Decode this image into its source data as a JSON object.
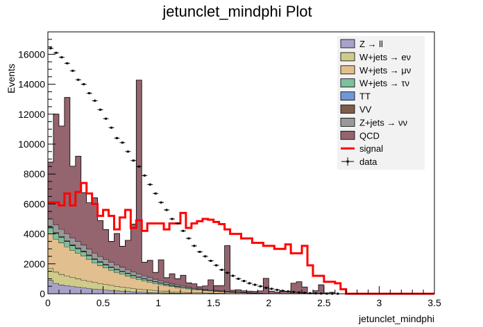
{
  "chart_data": {
    "type": "bar",
    "title": "jetunclet_mindphi Plot",
    "xlabel": "jetunclet_mindphi",
    "ylabel": "Events",
    "xlim": [
      0,
      3.5
    ],
    "ylim": [
      0,
      17500
    ],
    "x_ticks": [
      "0",
      "0.5",
      "1",
      "1.5",
      "2",
      "2.5",
      "3",
      "3.5"
    ],
    "y_ticks": [
      "0",
      "2000",
      "4000",
      "6000",
      "8000",
      "10000",
      "12000",
      "14000",
      "16000"
    ],
    "bin_width": 0.05,
    "stacked": true,
    "stack_series": [
      {
        "name": "Z → ll",
        "color": "#a7a3c8",
        "values": [
          900,
          700,
          600,
          550,
          500,
          450,
          400,
          360,
          320,
          290,
          260,
          230,
          200,
          180,
          160,
          140,
          120,
          105,
          90,
          80,
          70,
          60,
          50,
          40,
          35,
          30,
          25,
          20,
          18,
          15,
          12,
          10,
          8,
          6,
          5,
          4,
          3,
          3,
          2,
          2,
          1,
          1,
          1,
          1,
          1,
          0,
          0,
          0,
          0,
          0,
          0,
          0,
          0,
          0,
          0,
          0,
          0,
          0,
          0,
          0,
          0,
          0,
          0,
          0,
          0,
          0,
          0,
          0,
          0,
          0
        ]
      },
      {
        "name": "W+jets → eν",
        "color": "#cfcb8a",
        "values": [
          800,
          750,
          700,
          650,
          600,
          560,
          520,
          480,
          440,
          400,
          370,
          340,
          310,
          280,
          250,
          220,
          200,
          180,
          160,
          140,
          120,
          100,
          90,
          80,
          70,
          60,
          50,
          45,
          40,
          35,
          30,
          25,
          20,
          18,
          15,
          12,
          10,
          8,
          6,
          5,
          4,
          3,
          2,
          2,
          1,
          1,
          1,
          0,
          0,
          0,
          0,
          0,
          0,
          0,
          0,
          0,
          0,
          0,
          0,
          0,
          0,
          0,
          0,
          0,
          0,
          0,
          0,
          0,
          0,
          0
        ]
      },
      {
        "name": "W+jets → μν",
        "color": "#e2bf8e",
        "values": [
          2300,
          2200,
          2100,
          1950,
          1800,
          1700,
          1600,
          1450,
          1300,
          1200,
          1100,
          1000,
          920,
          850,
          780,
          700,
          640,
          580,
          520,
          470,
          420,
          380,
          340,
          300,
          270,
          240,
          210,
          185,
          160,
          140,
          120,
          100,
          85,
          70,
          60,
          50,
          40,
          30,
          22,
          16,
          12,
          8,
          6,
          4,
          3,
          2,
          1,
          1,
          0,
          0,
          0,
          0,
          0,
          0,
          0,
          0,
          0,
          0,
          0,
          0,
          0,
          0,
          0,
          0,
          0,
          0,
          0,
          0,
          0,
          0
        ]
      },
      {
        "name": "W+jets → τν",
        "color": "#7ebf9d",
        "values": [
          400,
          380,
          360,
          340,
          320,
          300,
          280,
          260,
          240,
          220,
          200,
          190,
          180,
          170,
          160,
          150,
          140,
          130,
          120,
          110,
          100,
          90,
          80,
          70,
          60,
          55,
          50,
          45,
          40,
          35,
          30,
          25,
          20,
          16,
          12,
          10,
          8,
          6,
          4,
          3,
          2,
          2,
          1,
          1,
          1,
          0,
          0,
          0,
          0,
          0,
          0,
          0,
          0,
          0,
          0,
          0,
          0,
          0,
          0,
          0,
          0,
          0,
          0,
          0,
          0,
          0,
          0,
          0,
          0,
          0
        ]
      },
      {
        "name": "TT",
        "color": "#6f97d6",
        "values": [
          20,
          20,
          20,
          18,
          18,
          16,
          16,
          15,
          14,
          13,
          12,
          11,
          10,
          10,
          9,
          8,
          8,
          7,
          6,
          6,
          5,
          5,
          4,
          4,
          3,
          3,
          3,
          2,
          2,
          2,
          2,
          1,
          1,
          1,
          1,
          1,
          0,
          0,
          0,
          0,
          0,
          0,
          0,
          0,
          0,
          0,
          0,
          0,
          0,
          0,
          0,
          0,
          0,
          0,
          0,
          0,
          0,
          0,
          0,
          0,
          0,
          0,
          0,
          0,
          0,
          0,
          0,
          0,
          0,
          0
        ]
      },
      {
        "name": "VV",
        "color": "#7f5d49",
        "values": [
          60,
          55,
          50,
          48,
          45,
          42,
          40,
          38,
          35,
          32,
          30,
          28,
          26,
          24,
          22,
          20,
          18,
          17,
          16,
          15,
          14,
          13,
          12,
          11,
          10,
          9,
          8,
          7,
          6,
          5,
          5,
          4,
          3,
          3,
          2,
          2,
          2,
          1,
          1,
          1,
          1,
          0,
          0,
          0,
          0,
          0,
          0,
          0,
          0,
          0,
          0,
          0,
          0,
          0,
          0,
          0,
          0,
          0,
          0,
          0,
          0,
          0,
          0,
          0,
          0,
          0,
          0,
          0,
          0,
          0
        ]
      },
      {
        "name": "Z+jets → νν",
        "color": "#999999",
        "values": [
          520,
          500,
          480,
          460,
          440,
          420,
          400,
          380,
          360,
          340,
          320,
          300,
          280,
          260,
          240,
          220,
          200,
          185,
          170,
          155,
          140,
          125,
          110,
          100,
          90,
          80,
          70,
          62,
          55,
          48,
          42,
          36,
          30,
          25,
          20,
          16,
          12,
          9,
          6,
          4,
          3,
          2,
          2,
          1,
          1,
          1,
          0,
          0,
          0,
          0,
          0,
          0,
          0,
          0,
          0,
          0,
          0,
          0,
          0,
          0,
          0,
          0,
          0,
          0,
          0,
          0,
          0,
          0,
          0,
          0
        ]
      },
      {
        "name": "QCD",
        "color": "#94646f",
        "values": [
          3800,
          7400,
          6900,
          9100,
          4800,
          5700,
          3500,
          3100,
          3700,
          2400,
          2000,
          1400,
          2100,
          1400,
          1950,
          3200,
          12950,
          900,
          1150,
          450,
          1400,
          300,
          650,
          400,
          700,
          250,
          250,
          100,
          200,
          650,
          300,
          350,
          3050,
          100,
          150,
          100,
          100,
          100,
          150,
          1000,
          150,
          100,
          150,
          150,
          700,
          800,
          450,
          0,
          200,
          600,
          50,
          100,
          0,
          0,
          0,
          0,
          0,
          0,
          0,
          0,
          0,
          0,
          0,
          0,
          0,
          0,
          0,
          0,
          0,
          0
        ]
      }
    ],
    "signal": {
      "name": "signal",
      "color": "#ff0000",
      "values": [
        6100,
        6100,
        5900,
        6700,
        5900,
        6800,
        7400,
        6700,
        6000,
        5200,
        5600,
        5200,
        4300,
        5100,
        5600,
        4400,
        4900,
        4200,
        4700,
        4700,
        4700,
        4300,
        4700,
        4700,
        5400,
        4400,
        4700,
        4850,
        5000,
        4950,
        4800,
        4650,
        4300,
        4000,
        4000,
        3700,
        3700,
        3400,
        3400,
        3200,
        3200,
        3000,
        3000,
        3300,
        2700,
        2700,
        3200,
        1900,
        1200,
        1200,
        800,
        800,
        700,
        300,
        0,
        0,
        0,
        0,
        0,
        0,
        0,
        0,
        0,
        0,
        0,
        0,
        0,
        0,
        0,
        0
      ]
    },
    "data_series": {
      "name": "data",
      "values": [
        16400,
        16100,
        15800,
        15400,
        14900,
        14300,
        14000,
        13400,
        12900,
        12300,
        11700,
        11100,
        10400,
        10100,
        9500,
        8900,
        8500,
        7900,
        7300,
        6700,
        6100,
        5600,
        5000,
        4700,
        4200,
        3700,
        3200,
        2800,
        2500,
        2200,
        1900,
        1600,
        1400,
        1200,
        1000,
        850,
        700,
        600,
        500,
        400,
        330,
        260,
        200,
        160,
        120,
        90,
        60,
        40,
        25,
        15,
        10,
        5,
        3,
        0,
        0,
        0,
        0,
        0,
        0,
        0,
        0,
        0,
        0,
        0,
        0,
        0,
        0,
        0,
        0,
        0
      ]
    },
    "legend": {
      "placement": "top-right",
      "entries": [
        "Z → ll",
        "W+jets → eν",
        "W+jets → μν",
        "W+jets → τν",
        "TT",
        "VV",
        "Z+jets → νν",
        "QCD",
        "signal",
        "data"
      ]
    },
    "grid": false
  }
}
